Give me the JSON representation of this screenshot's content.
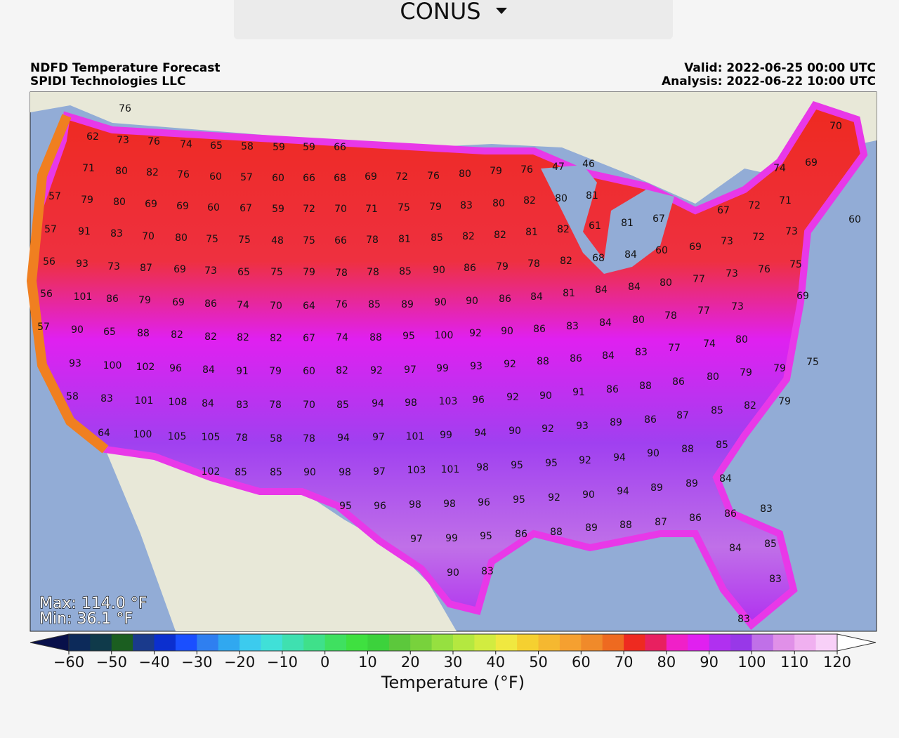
{
  "dropdown": {
    "label": "CONUS"
  },
  "header": {
    "title": "NDFD Temperature Forecast",
    "source": "SPIDI Technologies LLC",
    "valid": "Valid: 2022-06-25 00:00 UTC",
    "analysis": "Analysis: 2022-06-22 10:00 UTC"
  },
  "map": {
    "max": "Max: 114.0 °F",
    "min": "Min: 36.1 °F",
    "station_values": [
      76,
      62,
      73,
      76,
      74,
      65,
      58,
      59,
      59,
      66,
      71,
      80,
      82,
      76,
      60,
      57,
      60,
      66,
      68,
      69,
      72,
      76,
      80,
      79,
      76,
      47,
      46,
      74,
      69,
      70,
      57,
      79,
      80,
      69,
      69,
      60,
      67,
      59,
      72,
      70,
      71,
      75,
      79,
      83,
      80,
      82,
      80,
      81,
      67,
      72,
      71,
      57,
      91,
      83,
      70,
      80,
      75,
      75,
      48,
      75,
      66,
      78,
      81,
      85,
      82,
      82,
      81,
      82,
      61,
      81,
      67,
      60,
      73,
      72,
      73,
      56,
      93,
      73,
      87,
      69,
      73,
      65,
      75,
      79,
      78,
      78,
      85,
      90,
      86,
      79,
      78,
      82,
      68,
      84,
      60,
      69,
      75,
      76,
      73,
      77,
      56,
      101,
      86,
      79,
      69,
      86,
      74,
      70,
      64,
      76,
      85,
      89,
      90,
      90,
      86,
      84,
      81,
      84,
      84,
      80,
      69,
      77,
      73,
      78,
      57,
      90,
      65,
      88,
      82,
      82,
      82,
      82,
      67,
      74,
      88,
      95,
      100,
      92,
      90,
      86,
      83,
      84,
      80,
      77,
      74,
      80,
      93,
      100,
      102,
      96,
      84,
      91,
      79,
      60,
      82,
      92,
      97,
      99,
      93,
      92,
      88,
      86,
      84,
      83,
      79,
      80,
      86,
      75,
      79,
      58,
      83,
      101,
      108,
      84,
      83,
      78,
      70,
      85,
      94,
      98,
      103,
      96,
      92,
      90,
      91,
      86,
      88,
      87,
      85,
      82,
      79,
      64,
      100,
      105,
      105,
      78,
      58,
      78,
      94,
      97,
      101,
      99,
      94,
      90,
      92,
      93,
      89,
      86,
      88,
      85,
      102,
      85,
      85,
      90,
      98,
      97,
      103,
      101,
      98,
      95,
      95,
      92,
      94,
      90,
      89,
      84,
      95,
      96,
      98,
      98,
      96,
      95,
      92,
      90,
      94,
      89,
      97,
      99,
      95,
      86,
      88,
      89,
      88,
      87,
      86,
      86,
      83,
      90,
      83,
      84,
      85,
      83,
      83
    ]
  },
  "colorbar": {
    "label": "Temperature (°F)",
    "lim": [
      -60,
      120
    ],
    "ticks": [
      {
        "value": -60,
        "label": "−60"
      },
      {
        "value": -50,
        "label": "−50"
      },
      {
        "value": -40,
        "label": "−40"
      },
      {
        "value": -30,
        "label": "−30"
      },
      {
        "value": -20,
        "label": "−20"
      },
      {
        "value": -10,
        "label": "−10"
      },
      0,
      10,
      20,
      30,
      40,
      50,
      60,
      70,
      80,
      90,
      100,
      110,
      120
    ],
    "colors": [
      "#0c2a5a",
      "#0f3a4a",
      "#1b5e20",
      "#1a3a8c",
      "#0b2fcf",
      "#1a4fff",
      "#2f7ff0",
      "#30a8f0",
      "#3ccbee",
      "#40e0d8",
      "#3fe0b0",
      "#3fe08a",
      "#3fe060",
      "#3fe040",
      "#3cd23c",
      "#5cc83c",
      "#78d23c",
      "#96e040",
      "#b4e840",
      "#d2ec40",
      "#f0e840",
      "#f5d030",
      "#f5b830",
      "#f5a030",
      "#f08a2a",
      "#ee6a20",
      "#ee2a20",
      "#e82060",
      "#f020c8",
      "#e020f0",
      "#b030f0",
      "#9838e8",
      "#c070e8",
      "#e090e8",
      "#f0b0f0",
      "#f8d0f8"
    ]
  }
}
